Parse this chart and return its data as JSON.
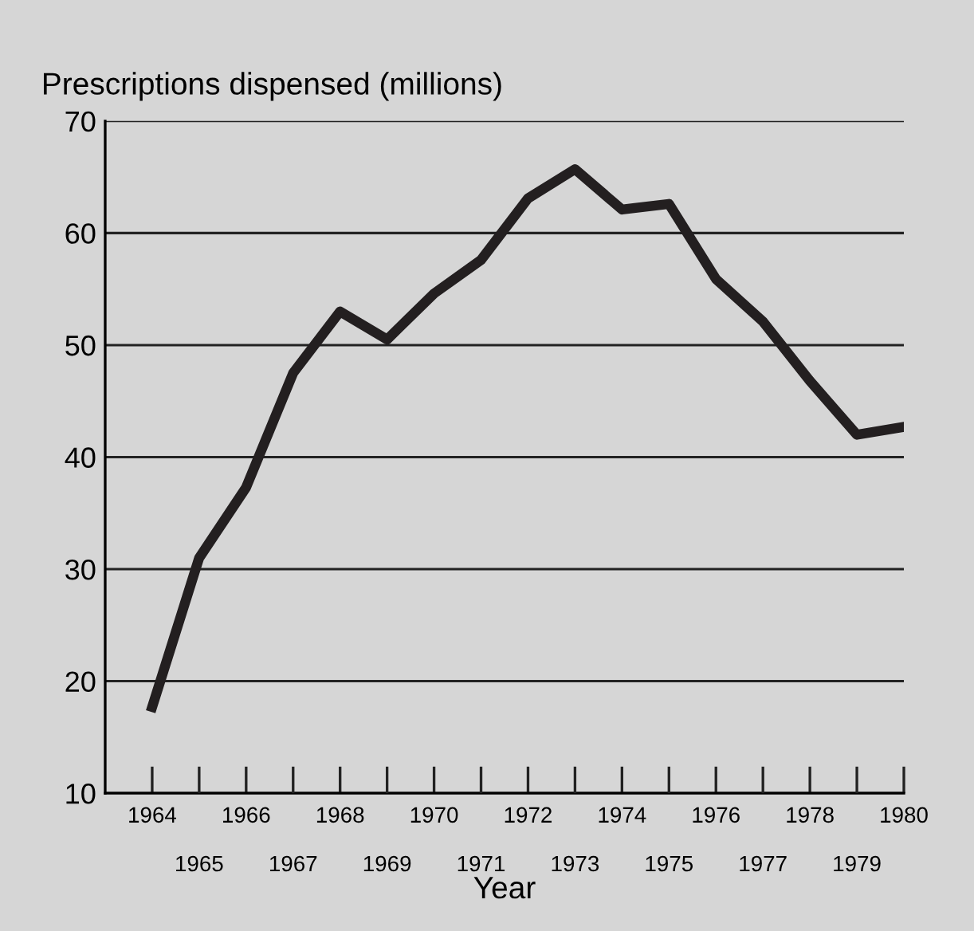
{
  "chart_data": {
    "type": "line",
    "ylabel": "Prescriptions dispensed (millions)",
    "xlabel": "Year",
    "x": [
      1964,
      1965,
      1966,
      1967,
      1968,
      1969,
      1970,
      1971,
      1972,
      1973,
      1974,
      1975,
      1976,
      1977,
      1978,
      1979,
      1980
    ],
    "series": [
      {
        "color": "#231f20",
        "values": [
          17.7,
          31.0,
          37.3,
          47.5,
          53.0,
          50.5,
          54.6,
          57.6,
          63.1,
          65.7,
          62.1,
          62.6,
          55.9,
          52.1,
          46.8,
          42.0,
          42.7
        ]
      }
    ],
    "xlim": [
      1963,
      1980
    ],
    "ylim": [
      10,
      70
    ],
    "xticks": [
      1964,
      1966,
      1968,
      1970,
      1972,
      1974,
      1976,
      1978,
      1980
    ],
    "x2lim": [
      1963,
      1980
    ],
    "x2ticks": [
      1965,
      1967,
      1969,
      1971,
      1973,
      1975,
      1977,
      1979
    ],
    "yticks": [
      10,
      20,
      30,
      40,
      50,
      60,
      70
    ],
    "grid": "y",
    "marker": "none",
    "line_style": "solid"
  }
}
